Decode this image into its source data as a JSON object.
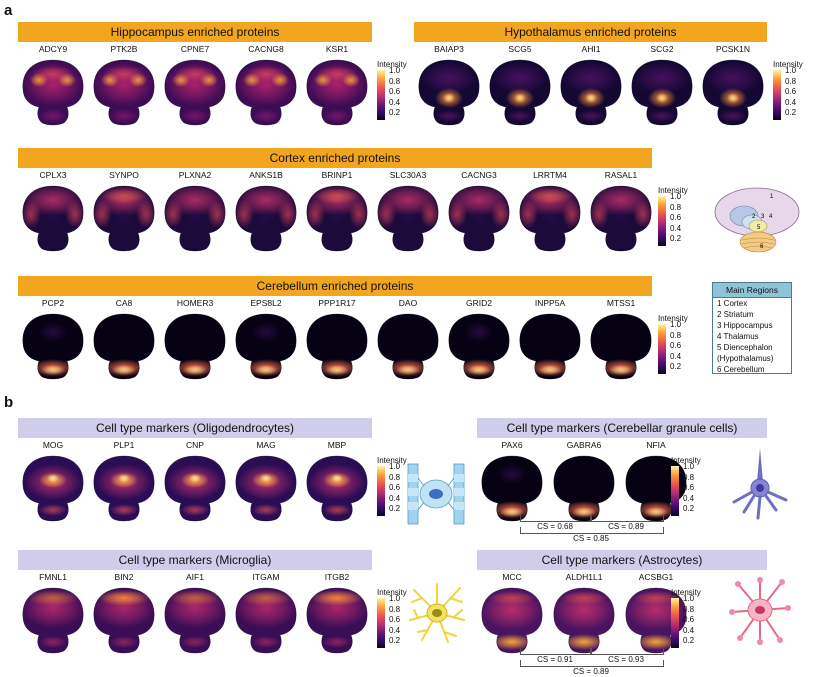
{
  "panels": {
    "a": "a",
    "b": "b"
  },
  "colorbar": {
    "title": "Intensity",
    "ticks": [
      "1.0",
      "0.8",
      "0.6",
      "0.4",
      "0.2"
    ]
  },
  "groups": [
    {
      "title": "Hippocampus enriched proteins",
      "proteins": [
        "ADCY9",
        "PTK2B",
        "CPNE7",
        "CACNG8",
        "KSR1"
      ],
      "pattern": "hippo"
    },
    {
      "title": "Hypothalamus enriched proteins",
      "proteins": [
        "BAIAP3",
        "SCG5",
        "AHI1",
        "SCG2",
        "PCSK1N"
      ],
      "pattern": "hypo"
    },
    {
      "title": "Cortex enriched proteins",
      "proteins": [
        "CPLX3",
        "SYNPO",
        "PLXNA2",
        "ANKS1B",
        "BRINP1",
        "SLC30A3",
        "CACNG3",
        "LRRTM4",
        "RASAL1"
      ],
      "pattern": "cortex"
    },
    {
      "title": "Cerebellum enriched proteins",
      "proteins": [
        "PCP2",
        "CA8",
        "HOMER3",
        "EPS8L2",
        "PPP1R17",
        "DAO",
        "GRID2",
        "INPP5A",
        "MTSS1"
      ],
      "pattern": "cereb"
    },
    {
      "title": "Cell type markers (Oligodendrocytes)",
      "proteins": [
        "MOG",
        "PLP1",
        "CNP",
        "MAG",
        "MBP"
      ],
      "pattern": "oligo"
    },
    {
      "title": "Cell type markers (Cerebellar granule cells)",
      "proteins": [
        "PAX6",
        "GABRA6",
        "NFIA"
      ],
      "pattern": "cereb"
    },
    {
      "title": "Cell type markers (Microglia)",
      "proteins": [
        "FMNL1",
        "BIN2",
        "AIF1",
        "ITGAM",
        "ITGB2"
      ],
      "pattern": "micro"
    },
    {
      "title": "Cell type markers (Astrocytes)",
      "proteins": [
        "MCC",
        "ALDH1L1",
        "ACSBG1"
      ],
      "pattern": "astro"
    }
  ],
  "regions_legend": {
    "title": "Main Regions",
    "items": [
      "1 Cortex",
      "2 Striatum",
      "3 Hippocampus",
      "4 Thalamus",
      "5 Diencephalon",
      "(Hypothalamus)",
      "6 Cerebellum"
    ]
  },
  "atlas_numbers": [
    "1",
    "2",
    "3",
    "4",
    "5",
    "6"
  ],
  "cs_granule": [
    "CS = 0.68",
    "CS = 0.89",
    "CS = 0.85"
  ],
  "cs_astro": [
    "CS = 0.91",
    "CS = 0.93",
    "CS = 0.89"
  ],
  "colors": {
    "orange_banner": "#f2a51f",
    "lavender_banner": "#cfcde9",
    "legend_header": "#8fc4d8"
  }
}
